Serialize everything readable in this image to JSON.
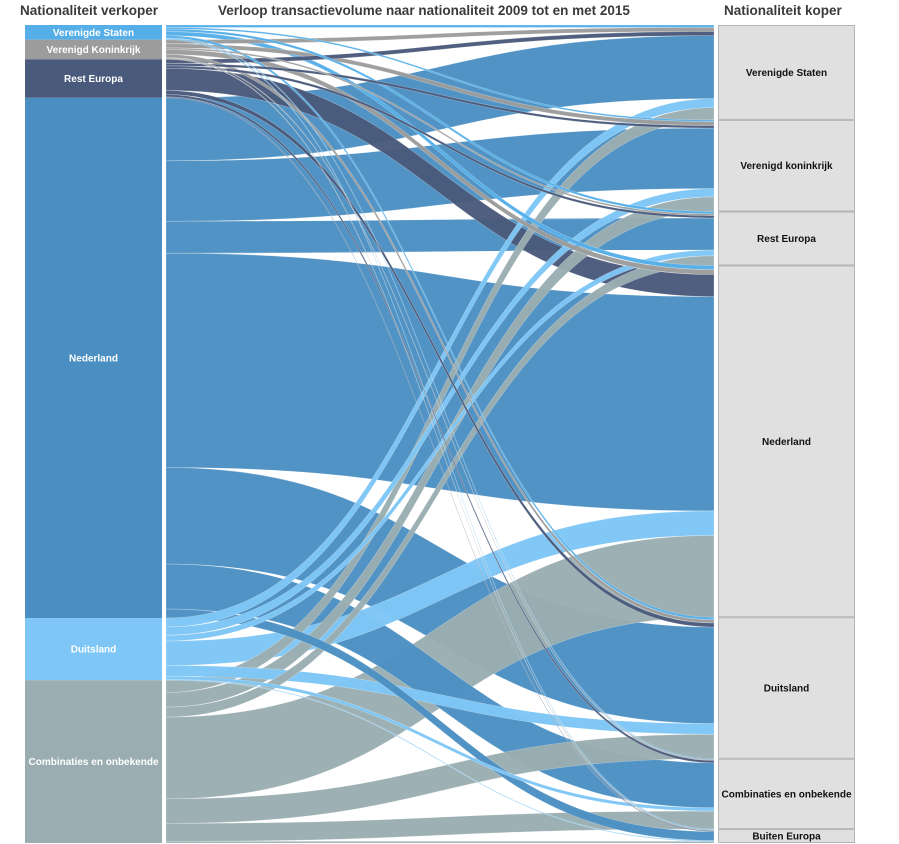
{
  "headers": {
    "left": "Nationaliteit verkoper",
    "center": "Verloop transactievolume naar nationaliteit 2009 tot en met 2015",
    "right": "Nationaliteit koper"
  },
  "chart_data": {
    "type": "sankey",
    "title": "Verloop transactievolume naar nationaliteit 2009 tot en met 2015",
    "source_axis_label": "Nationaliteit verkoper",
    "target_axis_label": "Nationaliteit koper",
    "units": "share of transaction volume (%)",
    "sources": [
      {
        "id": "us",
        "label": "Verenigde Staten",
        "color": "#55aee8",
        "value": 1.8
      },
      {
        "id": "uk",
        "label": "Verenigd Koninkrijk",
        "color": "#9c9c9c",
        "value": 2.4
      },
      {
        "id": "reu",
        "label": "Rest Europa",
        "color": "#4a5a7c",
        "value": 4.7
      },
      {
        "id": "nl",
        "label": "Nederland",
        "color": "#4b8fc2",
        "value": 63.6
      },
      {
        "id": "de",
        "label": "Duitsland",
        "color": "#7ec6f6",
        "value": 7.6
      },
      {
        "id": "comb",
        "label": "Combinaties en onbekende",
        "color": "#9aadb1",
        "value": 19.9
      }
    ],
    "targets": [
      {
        "id": "us",
        "label": "Verenigde Staten",
        "value": 11.6
      },
      {
        "id": "uk",
        "label": "Verenigd koninkrijk",
        "value": 11.2
      },
      {
        "id": "reu",
        "label": "Rest Europa",
        "value": 6.6
      },
      {
        "id": "nl",
        "label": "Nederland",
        "value": 43.0
      },
      {
        "id": "de",
        "label": "Duitsland",
        "value": 17.3
      },
      {
        "id": "comb",
        "label": "Combinaties en onbekende",
        "value": 8.6
      },
      {
        "id": "be",
        "label": "Buiten Europa",
        "value": 1.7
      }
    ],
    "links": [
      {
        "source": "us",
        "target": "us",
        "value": 0.3
      },
      {
        "source": "us",
        "target": "uk",
        "value": 0.2
      },
      {
        "source": "us",
        "target": "reu",
        "value": 0.3
      },
      {
        "source": "us",
        "target": "nl",
        "value": 0.5
      },
      {
        "source": "us",
        "target": "de",
        "value": 0.3
      },
      {
        "source": "us",
        "target": "comb",
        "value": 0.1
      },
      {
        "source": "us",
        "target": "be",
        "value": 0.1
      },
      {
        "source": "uk",
        "target": "us",
        "value": 0.5
      },
      {
        "source": "uk",
        "target": "uk",
        "value": 0.5
      },
      {
        "source": "uk",
        "target": "reu",
        "value": 0.2
      },
      {
        "source": "uk",
        "target": "nl",
        "value": 0.6
      },
      {
        "source": "uk",
        "target": "de",
        "value": 0.4
      },
      {
        "source": "uk",
        "target": "comb",
        "value": 0.1
      },
      {
        "source": "uk",
        "target": "be",
        "value": 0.1
      },
      {
        "source": "reu",
        "target": "us",
        "value": 0.5
      },
      {
        "source": "reu",
        "target": "uk",
        "value": 0.3
      },
      {
        "source": "reu",
        "target": "reu",
        "value": 0.3
      },
      {
        "source": "reu",
        "target": "nl",
        "value": 2.7
      },
      {
        "source": "reu",
        "target": "de",
        "value": 0.5
      },
      {
        "source": "reu",
        "target": "comb",
        "value": 0.3
      },
      {
        "source": "reu",
        "target": "be",
        "value": 0.1
      },
      {
        "source": "nl",
        "target": "us",
        "value": 7.7
      },
      {
        "source": "nl",
        "target": "uk",
        "value": 7.4
      },
      {
        "source": "nl",
        "target": "reu",
        "value": 3.9
      },
      {
        "source": "nl",
        "target": "nl",
        "value": 26.2
      },
      {
        "source": "nl",
        "target": "de",
        "value": 11.8
      },
      {
        "source": "nl",
        "target": "comb",
        "value": 5.5
      },
      {
        "source": "nl",
        "target": "be",
        "value": 1.1
      },
      {
        "source": "de",
        "target": "us",
        "value": 1.1
      },
      {
        "source": "de",
        "target": "uk",
        "value": 1.0
      },
      {
        "source": "de",
        "target": "reu",
        "value": 0.7
      },
      {
        "source": "de",
        "target": "nl",
        "value": 3.0
      },
      {
        "source": "de",
        "target": "de",
        "value": 1.3
      },
      {
        "source": "de",
        "target": "comb",
        "value": 0.4
      },
      {
        "source": "de",
        "target": "be",
        "value": 0.1
      },
      {
        "source": "comb",
        "target": "us",
        "value": 1.5
      },
      {
        "source": "comb",
        "target": "uk",
        "value": 1.8
      },
      {
        "source": "comb",
        "target": "reu",
        "value": 1.2
      },
      {
        "source": "comb",
        "target": "nl",
        "value": 10.0
      },
      {
        "source": "comb",
        "target": "de",
        "value": 3.0
      },
      {
        "source": "comb",
        "target": "comb",
        "value": 2.2
      },
      {
        "source": "comb",
        "target": "be",
        "value": 0.2
      }
    ],
    "target_node_color": "#e0e0e0",
    "target_node_border": "#b5b5b5",
    "link_opacity": 0.97
  }
}
